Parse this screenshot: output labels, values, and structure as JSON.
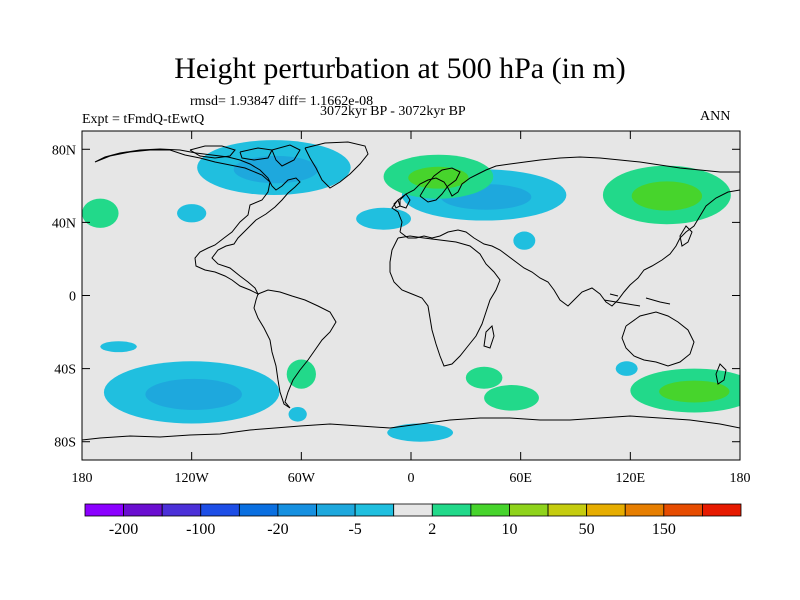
{
  "title": "Height perturbation at 500 hPa (in m)",
  "stats": "rmsd= 1.93847 diff= 1.1662e-08",
  "period": "3072kyr BP - 3072kyr BP",
  "experiment": "Expt = tFmdQ-tEwtQ",
  "season": "ANN",
  "map": {
    "projection": "cylindrical-equidistant",
    "lon_range": [
      -180,
      180
    ],
    "lat_range": [
      -90,
      90
    ],
    "lat_ticks": [
      {
        "value": 80,
        "label": "80N"
      },
      {
        "value": 40,
        "label": "40N"
      },
      {
        "value": 0,
        "label": "0"
      },
      {
        "value": -40,
        "label": "40S"
      },
      {
        "value": -80,
        "label": "80S"
      }
    ],
    "lon_ticks": [
      {
        "value": -180,
        "label": "180"
      },
      {
        "value": -120,
        "label": "120W"
      },
      {
        "value": -60,
        "label": "60W"
      },
      {
        "value": 0,
        "label": "0"
      },
      {
        "value": 60,
        "label": "60E"
      },
      {
        "value": 120,
        "label": "120E"
      },
      {
        "value": 180,
        "label": "180"
      }
    ],
    "background_color": "#e6e6e6",
    "negative_anomalies": [
      {
        "name": "arctic-canada-negative",
        "lon": -75,
        "lat": 70,
        "rlon": 42,
        "rlat": 15
      },
      {
        "name": "north-atlantic-west-negative",
        "lon": -120,
        "lat": 45,
        "rlon": 8,
        "rlat": 5
      },
      {
        "name": "central-atlantic-negative",
        "lon": -15,
        "lat": 42,
        "rlon": 15,
        "rlat": 6
      },
      {
        "name": "europe-asia-negative",
        "lon": 40,
        "lat": 55,
        "rlon": 45,
        "rlat": 14
      },
      {
        "name": "middle-east-negative",
        "lon": 62,
        "lat": 30,
        "rlon": 6,
        "rlat": 5
      },
      {
        "name": "south-pacific-negative",
        "lon": -120,
        "lat": -53,
        "rlon": 48,
        "rlat": 17
      },
      {
        "name": "south-america-south-negative",
        "lon": -62,
        "lat": -65,
        "rlon": 5,
        "rlat": 4
      },
      {
        "name": "southern-ocean-negative",
        "lon": 5,
        "lat": -75,
        "rlon": 18,
        "rlat": 5
      },
      {
        "name": "south-pacific-east-negative",
        "lon": -160,
        "lat": -28,
        "rlon": 10,
        "rlat": 3
      },
      {
        "name": "tasman-negative",
        "lon": 118,
        "lat": -40,
        "rlon": 6,
        "rlat": 4
      }
    ],
    "positive_anomalies": [
      {
        "name": "scandinavia-positive",
        "lon": 15,
        "lat": 65,
        "rlon": 30,
        "rlat": 12
      },
      {
        "name": "west-pacific-positive",
        "lon": 140,
        "lat": 55,
        "rlon": 35,
        "rlat": 16
      },
      {
        "name": "south-atlantic-positive",
        "lon": -60,
        "lat": -43,
        "rlon": 8,
        "rlat": 8
      },
      {
        "name": "indian-ocean-positive",
        "lon": 55,
        "lat": -56,
        "rlon": 15,
        "rlat": 7
      },
      {
        "name": "south-africa-positive",
        "lon": 40,
        "lat": -45,
        "rlon": 10,
        "rlat": 6
      },
      {
        "name": "new-zealand-positive",
        "lon": 155,
        "lat": -52,
        "rlon": 35,
        "rlat": 12
      },
      {
        "name": "north-pacific-west-positive",
        "lon": -170,
        "lat": 45,
        "rlon": 10,
        "rlat": 8
      }
    ]
  },
  "colorbar": {
    "colors": [
      "#8b00ff",
      "#6a0ed0",
      "#4b30d8",
      "#1d4ee6",
      "#0a6fe0",
      "#1690e0",
      "#1ea8dd",
      "#20bfdf",
      "#e6e6e6",
      "#22d98a",
      "#47d42c",
      "#8fd31b",
      "#c5cc0f",
      "#e6ad00",
      "#e67e00",
      "#e64c00",
      "#e61a00"
    ],
    "labels": [
      {
        "text": "-200",
        "boundary": 1
      },
      {
        "text": "-100",
        "boundary": 3
      },
      {
        "text": "-20",
        "boundary": 5
      },
      {
        "text": "-5",
        "boundary": 7
      },
      {
        "text": "2",
        "boundary": 9
      },
      {
        "text": "10",
        "boundary": 11
      },
      {
        "text": "50",
        "boundary": 13
      },
      {
        "text": "150",
        "boundary": 15
      }
    ]
  }
}
